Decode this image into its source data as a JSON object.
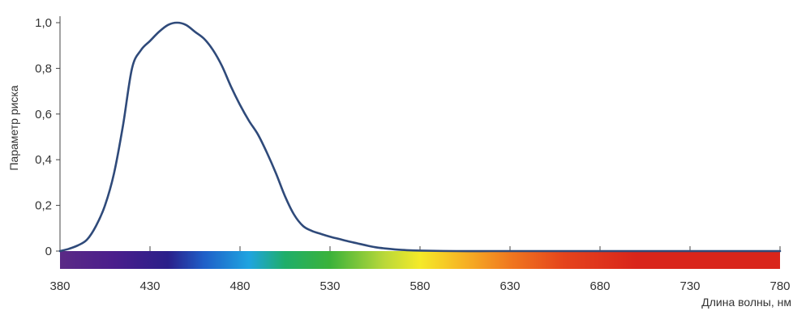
{
  "chart_data": {
    "type": "line",
    "title": "",
    "xlabel": "Длина волны, нм",
    "ylabel": "Параметр риска",
    "xlim": [
      380,
      780
    ],
    "ylim": [
      0,
      1.0
    ],
    "x_ticks": [
      "380",
      "430",
      "480",
      "530",
      "580",
      "630",
      "680",
      "730",
      "780"
    ],
    "y_ticks": [
      "0",
      "0,2",
      "0,4",
      "0,6",
      "0,8",
      "1,0"
    ],
    "grid": false,
    "legend": "none",
    "line_color": "#2f4a7a",
    "spectrum_band": {
      "range": [
        380,
        780
      ],
      "stops": [
        {
          "x": 380,
          "color": "#5b2a86"
        },
        {
          "x": 410,
          "color": "#4b1e8c"
        },
        {
          "x": 440,
          "color": "#2a1f8a"
        },
        {
          "x": 460,
          "color": "#1f5fc8"
        },
        {
          "x": 485,
          "color": "#1fa4e0"
        },
        {
          "x": 505,
          "color": "#1fae6a"
        },
        {
          "x": 530,
          "color": "#3bb23a"
        },
        {
          "x": 560,
          "color": "#b9d83a"
        },
        {
          "x": 580,
          "color": "#f5ea28"
        },
        {
          "x": 605,
          "color": "#f6b124"
        },
        {
          "x": 630,
          "color": "#f0781f"
        },
        {
          "x": 660,
          "color": "#e5441c"
        },
        {
          "x": 700,
          "color": "#d9251b"
        },
        {
          "x": 780,
          "color": "#d9251b"
        }
      ]
    },
    "series": [
      {
        "x": [
          380,
          385,
          390,
          395,
          400,
          405,
          410,
          415,
          420,
          425,
          430,
          435,
          440,
          445,
          450,
          455,
          460,
          465,
          470,
          475,
          480,
          485,
          490,
          495,
          500,
          505,
          510,
          515,
          520,
          525,
          530,
          535,
          540,
          545,
          550,
          555,
          560,
          570,
          580,
          600,
          620,
          640,
          660,
          700,
          780
        ],
        "y": [
          0.0,
          0.01,
          0.025,
          0.05,
          0.11,
          0.2,
          0.34,
          0.55,
          0.8,
          0.88,
          0.92,
          0.96,
          0.99,
          1.0,
          0.99,
          0.96,
          0.93,
          0.88,
          0.81,
          0.72,
          0.64,
          0.57,
          0.51,
          0.43,
          0.34,
          0.24,
          0.16,
          0.11,
          0.088,
          0.075,
          0.063,
          0.053,
          0.043,
          0.034,
          0.025,
          0.017,
          0.012,
          0.005,
          0.002,
          0.0,
          0.0,
          0.0,
          0.0,
          0.0,
          0.0
        ]
      }
    ]
  }
}
